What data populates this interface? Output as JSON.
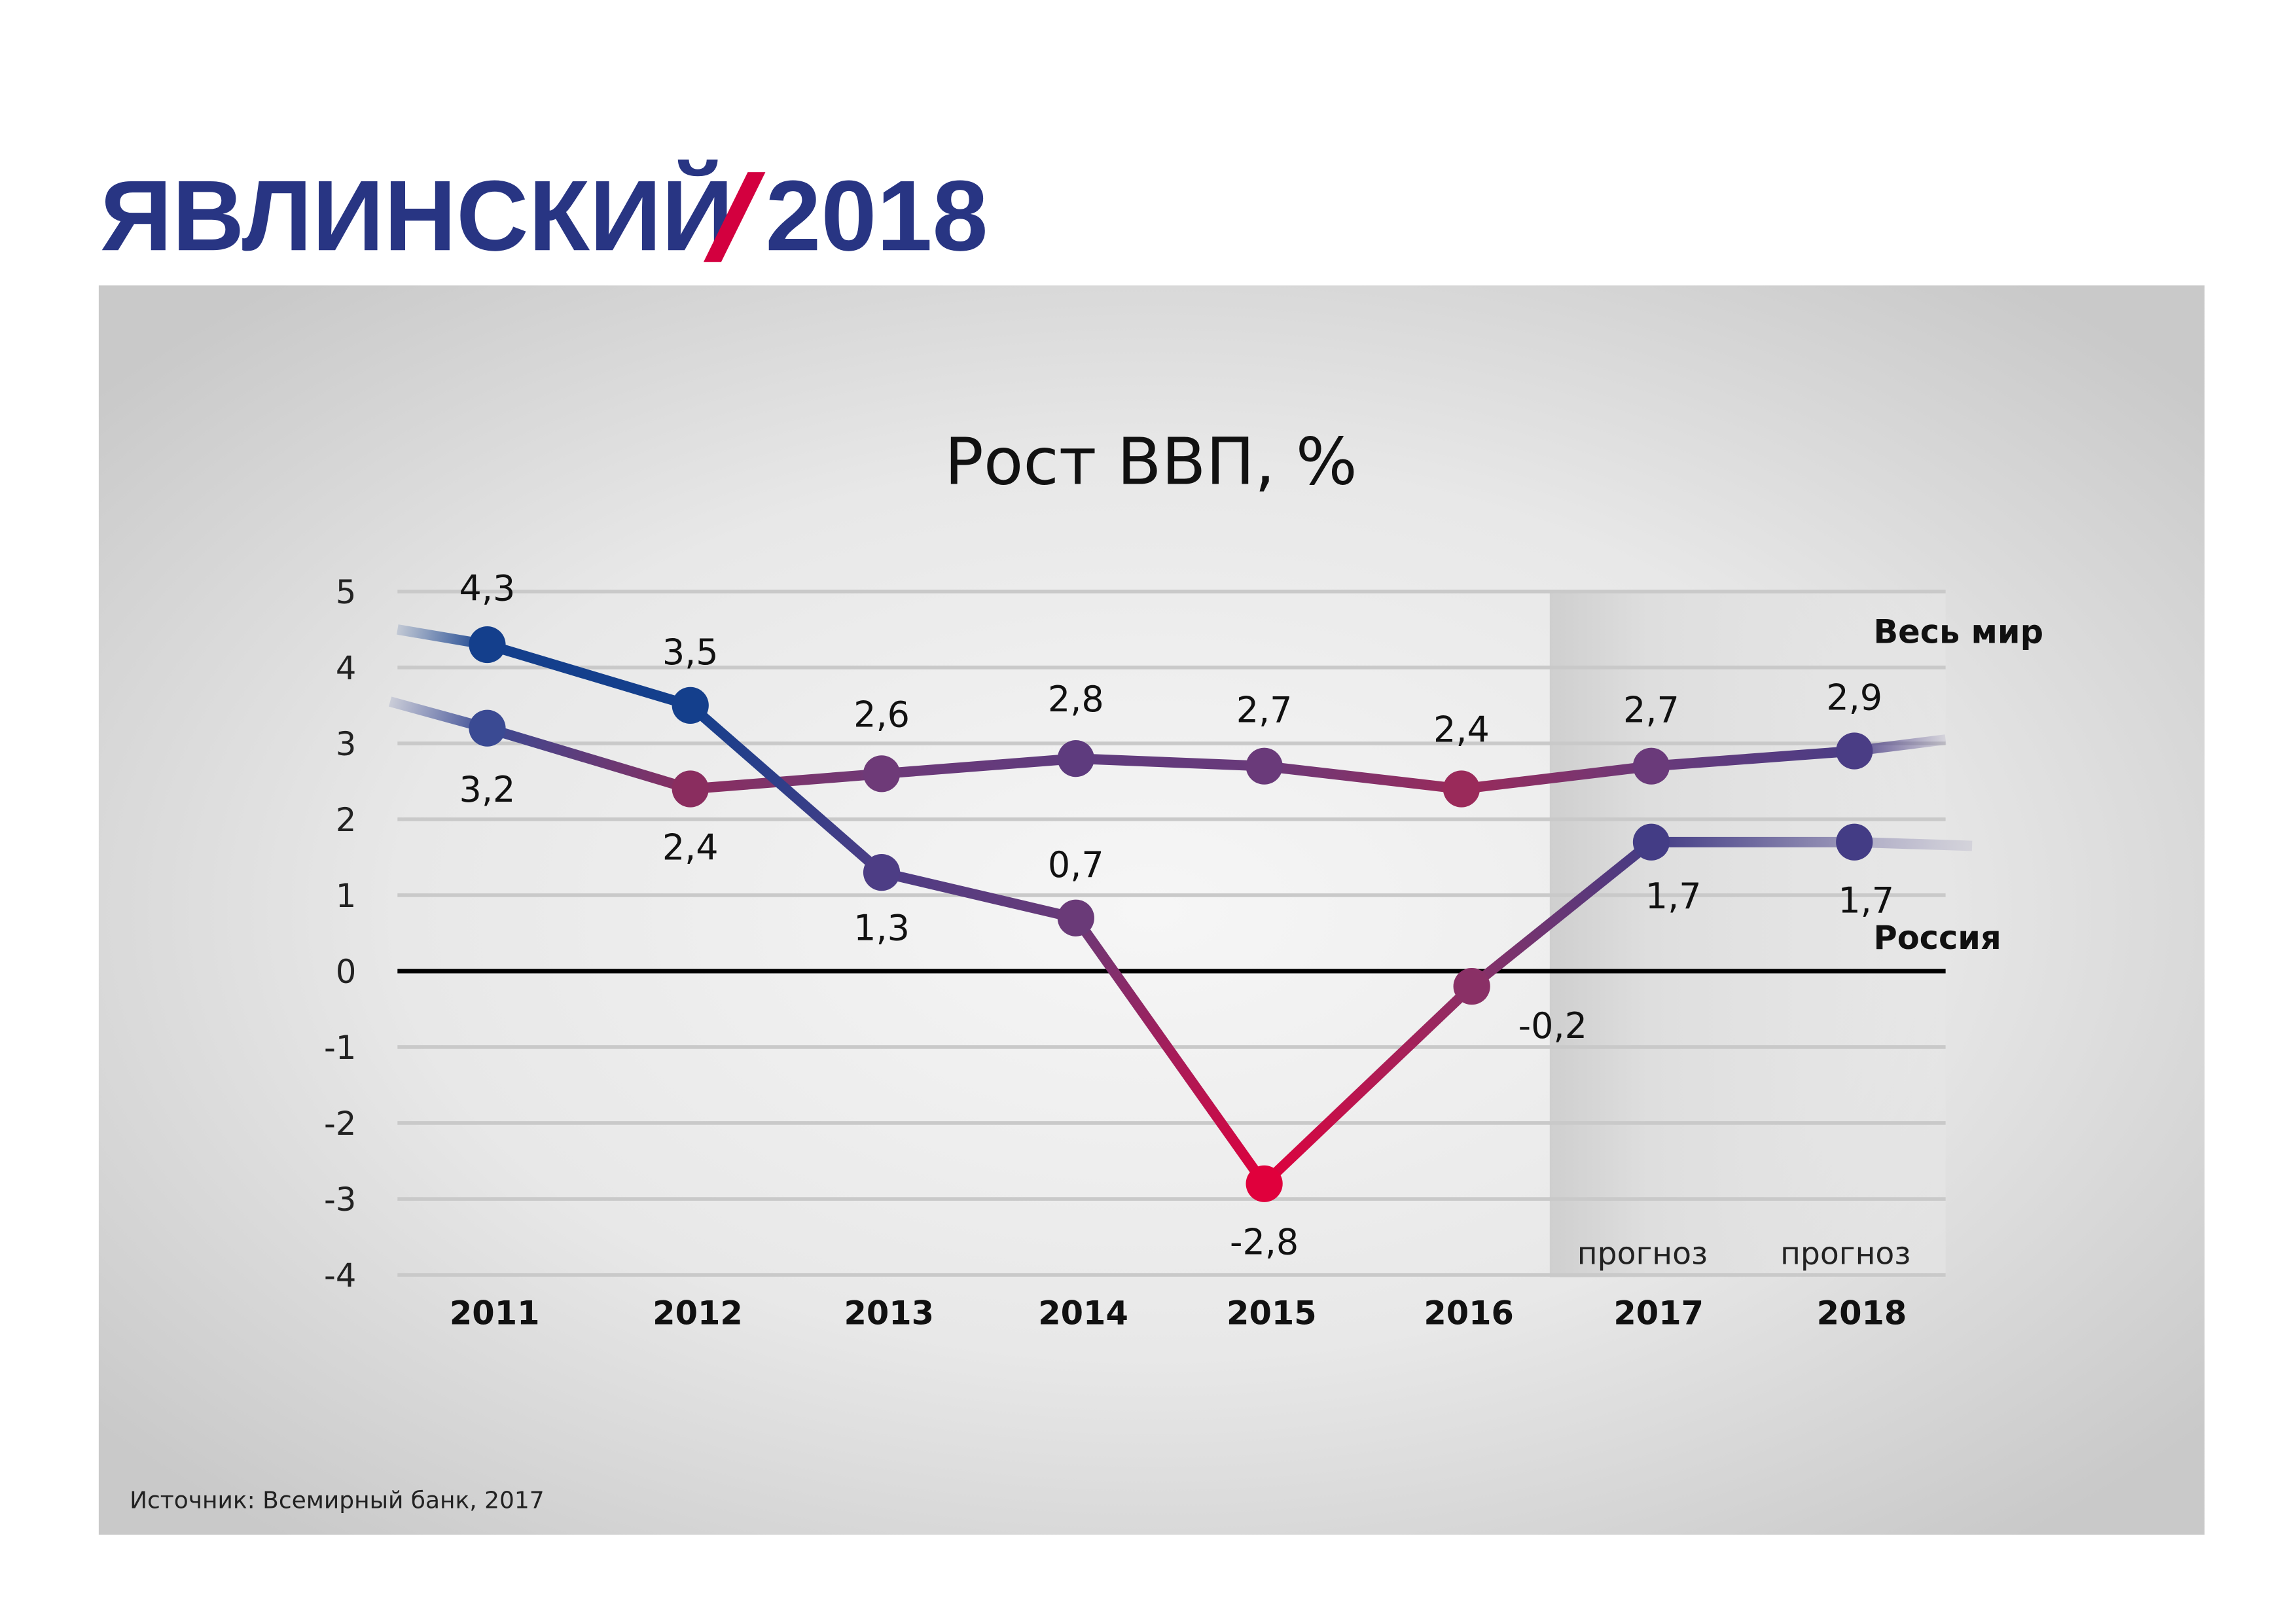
{
  "header": {
    "brand_name": "ЯВЛИНСКИЙ",
    "brand_slash": "/",
    "brand_year": "2018",
    "brand_color": "#283583",
    "slash_color": "#d3003f"
  },
  "footer": {
    "source": "Источник: Всемирный банк, 2017"
  },
  "chart_data": {
    "type": "line",
    "title": "Рост ВВП, %",
    "xlabel": "",
    "ylabel": "",
    "categories": [
      "2011",
      "2012",
      "2013",
      "2014",
      "2015",
      "2016",
      "2017",
      "2018"
    ],
    "ylim": [
      -4,
      5
    ],
    "yticks": [
      "5",
      "4",
      "3",
      "2",
      "1",
      "0",
      "-1",
      "-2",
      "-3",
      "-4"
    ],
    "ytick_values": [
      5,
      4,
      3,
      2,
      1,
      0,
      -1,
      -2,
      -3,
      -4
    ],
    "grid": true,
    "forecast_label": "прогноз",
    "forecast_categories": [
      "2017",
      "2018"
    ],
    "series": [
      {
        "name": "Весь мир",
        "values": [
          3.2,
          2.4,
          2.6,
          2.8,
          2.7,
          2.4,
          2.7,
          2.9
        ],
        "labels": [
          "3,2",
          "2,4",
          "2,6",
          "2,8",
          "2,7",
          "2,4",
          "2,7",
          "2,9"
        ],
        "point_colors": [
          "#3a4a93",
          "#8a2d5f",
          "#6e3a78",
          "#5e3b7e",
          "#6a3a7a",
          "#9a2a5a",
          "#6a3a7a",
          "#4a3d85"
        ],
        "legend_position": "right"
      },
      {
        "name": "Россия",
        "values": [
          4.3,
          3.5,
          1.3,
          0.7,
          -2.8,
          -0.2,
          1.7,
          1.7
        ],
        "labels": [
          "4,3",
          "3,5",
          "1,3",
          "0,7",
          "-2,8",
          "-0,2",
          "1,7",
          "1,7"
        ],
        "point_colors": [
          "#143f8c",
          "#143f8c",
          "#4d3d85",
          "#6a3a78",
          "#e0003c",
          "#8a3066",
          "#433c85",
          "#433c85"
        ],
        "legend_position": "right"
      }
    ]
  }
}
